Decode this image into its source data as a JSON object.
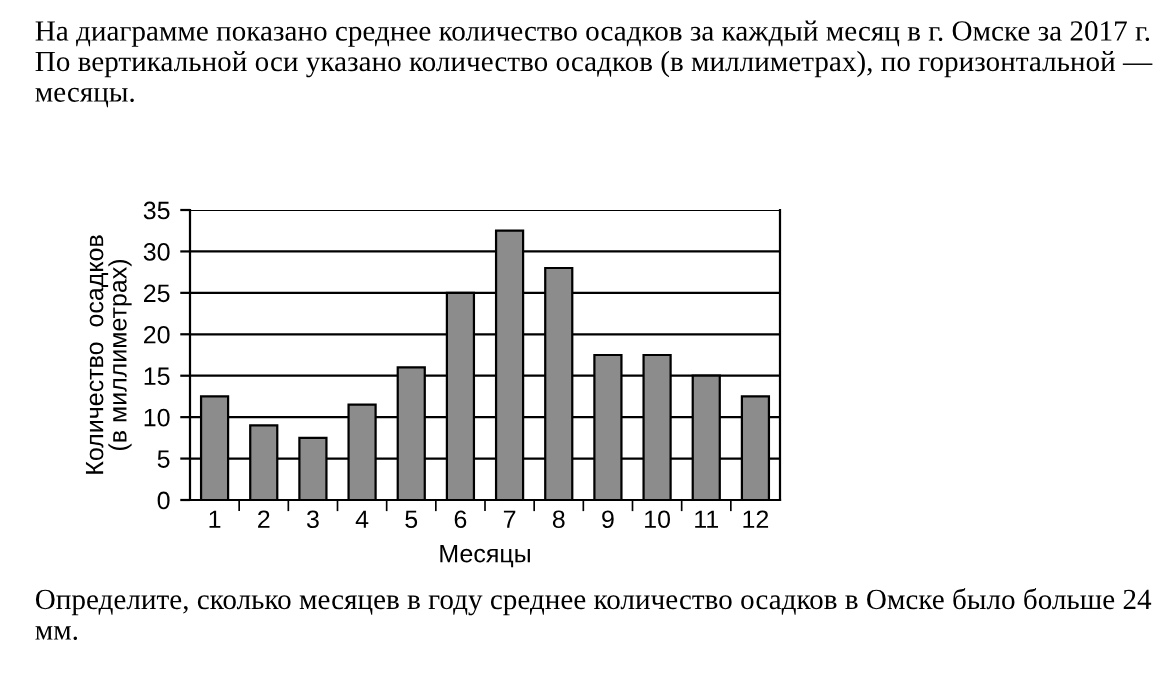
{
  "chart_data": {
    "type": "bar",
    "title": "На диаграмме показано среднее количество осадков за каждый месяц в г. Омске за 2017 г. По вертикальной оси указано количество осадков (в миллиметрах), по горизонтальной — месяцы.",
    "categories": [
      "1",
      "2",
      "3",
      "4",
      "5",
      "6",
      "7",
      "8",
      "9",
      "10",
      "11",
      "12"
    ],
    "values": [
      12.5,
      9,
      7.5,
      11.5,
      16,
      25,
      32.5,
      28,
      17.5,
      17.5,
      15,
      12.5
    ],
    "color": "#8c8c8c",
    "xlabel": "Месяцы",
    "ylabel": "Количество  осадков\n(в миллиметрах)",
    "ylim": [
      0,
      35
    ],
    "yticks": [
      0,
      5,
      10,
      15,
      20,
      25,
      30,
      35
    ],
    "grid": "y",
    "annotations": [
      "Определите, сколько месяцев в году среднее количество осадков в Омске было больше 24 мм."
    ]
  }
}
